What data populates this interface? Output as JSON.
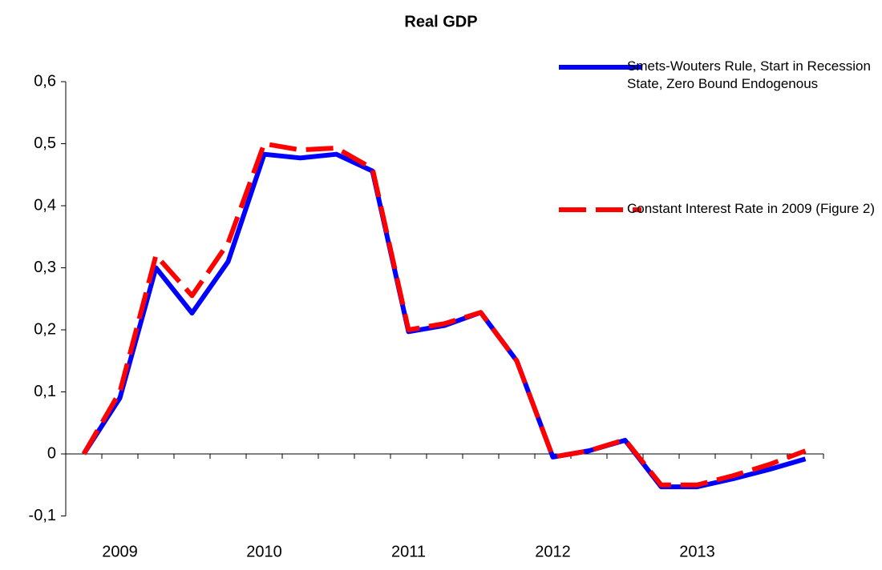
{
  "chart_data": {
    "type": "line",
    "title": "Real GDP",
    "categories": [
      null,
      "2009",
      null,
      null,
      null,
      "2010",
      null,
      null,
      null,
      "2011",
      null,
      null,
      null,
      "2012",
      null,
      null,
      null,
      "2013",
      null,
      null,
      null
    ],
    "series": [
      {
        "name": "Smets-Wouters Rule, Start in Recession State, Zero Bound Endogenous",
        "color": "#0000ff",
        "dash": false,
        "values": [
          0,
          0.09,
          0.3,
          0.227,
          0.31,
          0.483,
          0.477,
          0.483,
          0.456,
          0.197,
          0.207,
          0.228,
          0.15,
          -0.005,
          0.005,
          0.022,
          -0.053,
          -0.053,
          -0.04,
          -0.025,
          -0.008
        ]
      },
      {
        "name": "Constant Interest Rate in 2009 (Figure 2)",
        "color": "#ff0000",
        "dash": true,
        "values": [
          0,
          0.1,
          0.32,
          0.255,
          0.34,
          0.5,
          0.49,
          0.493,
          0.46,
          0.2,
          0.21,
          0.228,
          0.15,
          -0.005,
          0.005,
          0.023,
          -0.05,
          -0.05,
          -0.035,
          -0.017,
          0.005
        ]
      }
    ],
    "ylim": [
      -0.1,
      0.6
    ],
    "yticks": [
      {
        "value": -0.1,
        "label": "-0,1"
      },
      0,
      {
        "value": 0.1,
        "label": "0,1"
      },
      {
        "value": 0.2,
        "label": "0,2"
      },
      {
        "value": 0.3,
        "label": "0,3"
      },
      {
        "value": 0.4,
        "label": "0,4"
      },
      {
        "value": 0.5,
        "label": "0,5"
      },
      {
        "value": 0.6,
        "label": "0,6"
      }
    ],
    "grid": false,
    "legend": "top-right"
  }
}
